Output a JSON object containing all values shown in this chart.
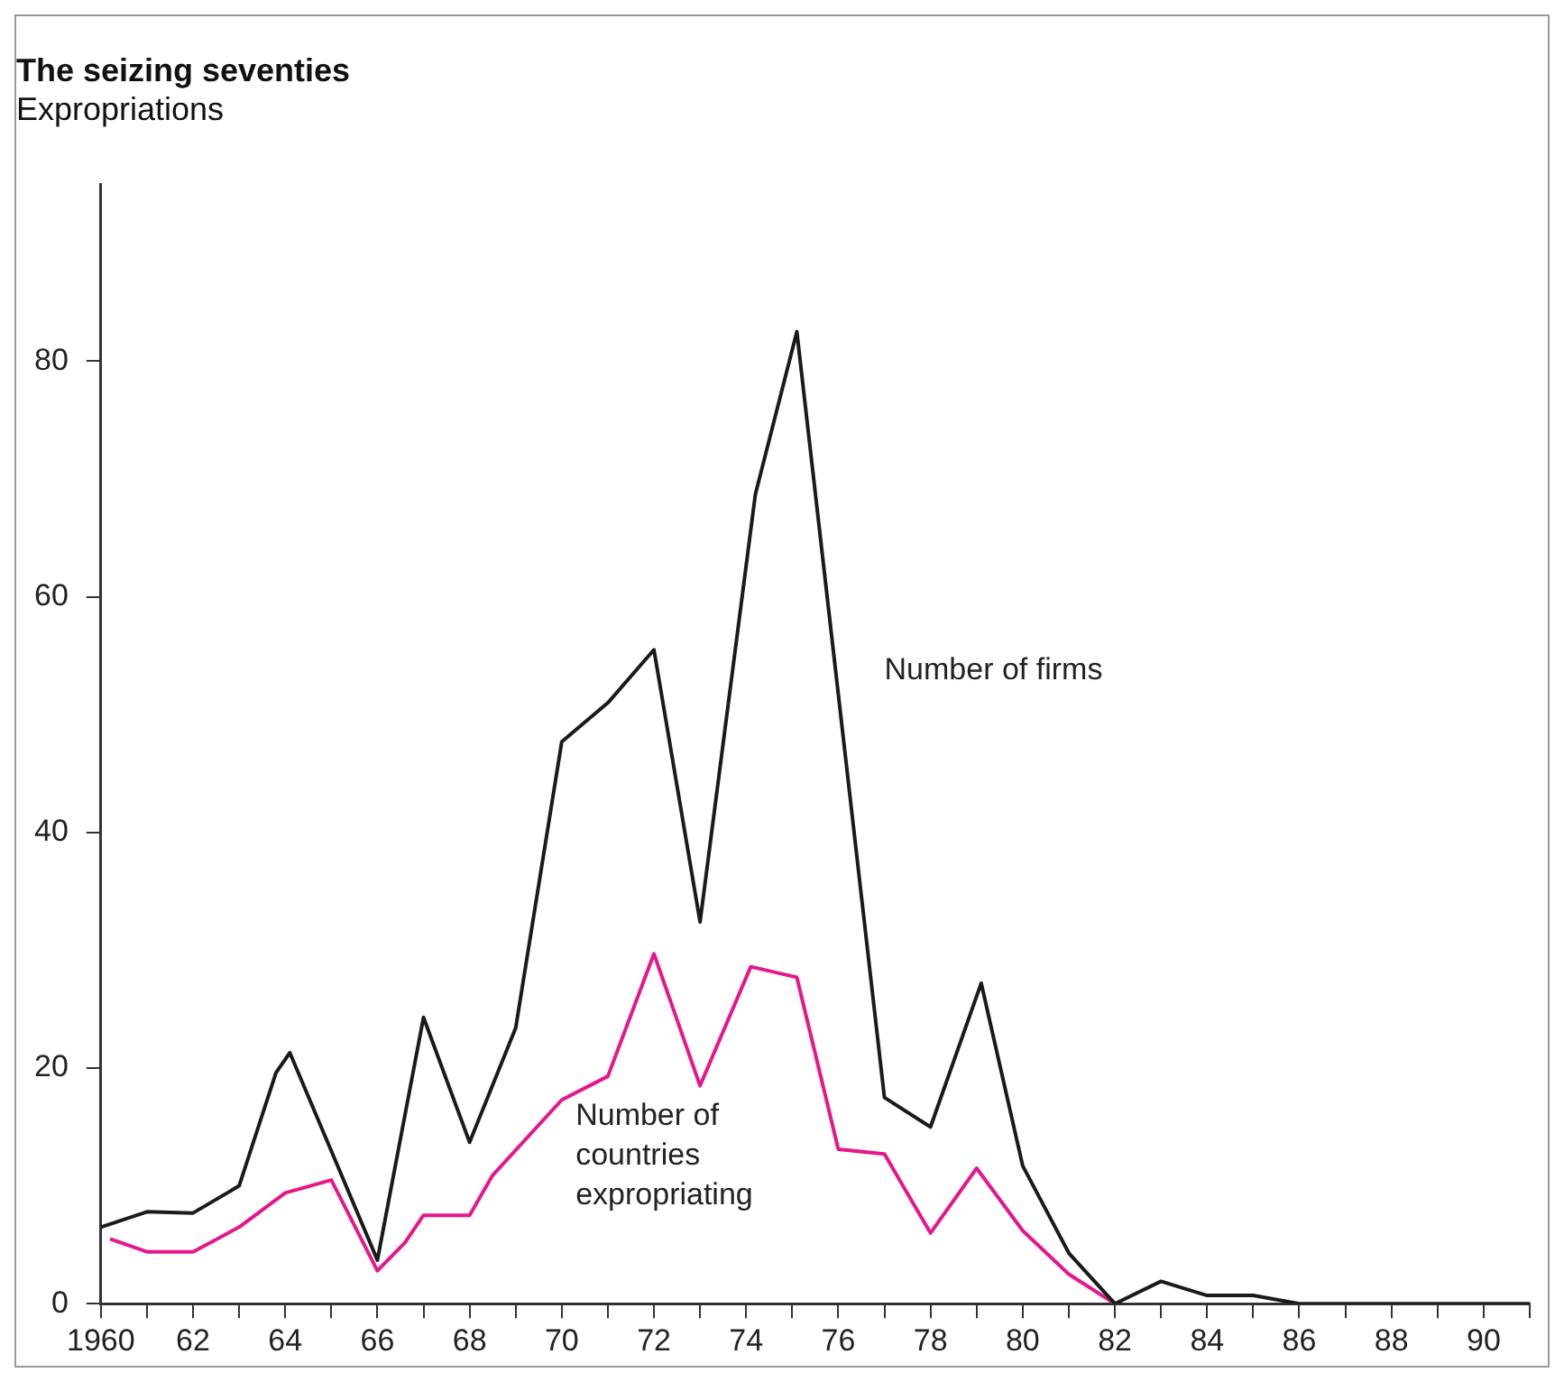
{
  "chart_data": {
    "type": "line",
    "title": "The seizing seventies",
    "subtitle": "Expropriations",
    "xlim": [
      1960,
      1991
    ],
    "ylim": [
      0,
      95
    ],
    "xticks": [
      {
        "value": 1960,
        "label": "1960"
      },
      {
        "value": 1961,
        "label": null
      },
      {
        "value": 1962,
        "label": "62"
      },
      {
        "value": 1963,
        "label": null
      },
      {
        "value": 1964,
        "label": "64"
      },
      {
        "value": 1965,
        "label": null
      },
      {
        "value": 1966,
        "label": "66"
      },
      {
        "value": 1967,
        "label": null
      },
      {
        "value": 1968,
        "label": "68"
      },
      {
        "value": 1969,
        "label": null
      },
      {
        "value": 1970,
        "label": "70"
      },
      {
        "value": 1971,
        "label": null
      },
      {
        "value": 1972,
        "label": "72"
      },
      {
        "value": 1973,
        "label": null
      },
      {
        "value": 1974,
        "label": "74"
      },
      {
        "value": 1975,
        "label": null
      },
      {
        "value": 1976,
        "label": "76"
      },
      {
        "value": 1977,
        "label": null
      },
      {
        "value": 1978,
        "label": "78"
      },
      {
        "value": 1979,
        "label": null
      },
      {
        "value": 1980,
        "label": "80"
      },
      {
        "value": 1981,
        "label": null
      },
      {
        "value": 1982,
        "label": "82"
      },
      {
        "value": 1983,
        "label": null
      },
      {
        "value": 1984,
        "label": "84"
      },
      {
        "value": 1985,
        "label": null
      },
      {
        "value": 1986,
        "label": "86"
      },
      {
        "value": 1987,
        "label": null
      },
      {
        "value": 1988,
        "label": "88"
      },
      {
        "value": 1989,
        "label": null
      },
      {
        "value": 1990,
        "label": "90"
      },
      {
        "value": 1991,
        "label": null
      }
    ],
    "yticks": [
      0,
      20,
      40,
      60,
      80
    ],
    "grid": false,
    "legend": false,
    "marker": "none",
    "line_style": "solid",
    "series": [
      {
        "name": "Number of firms",
        "color": "#1a1a1a",
        "x": [
          1960,
          1961,
          1962,
          1963,
          1963.8,
          1964.1,
          1966,
          1967,
          1968,
          1969,
          1970,
          1971,
          1972,
          1973,
          1974.2,
          1975.1,
          1977,
          1978,
          1979.1,
          1980,
          1981,
          1982,
          1983,
          1984,
          1985,
          1986,
          1991
        ],
        "values": [
          6.5,
          7.8,
          7.7,
          10,
          19.6,
          21.3,
          3.7,
          24.3,
          13.7,
          23.4,
          47.7,
          51,
          55.5,
          32.4,
          68.7,
          82.5,
          17.5,
          15,
          27.2,
          11.7,
          4.3,
          0,
          1.9,
          0.7,
          0.7,
          0,
          0
        ]
      },
      {
        "name": "Number of countries expropriating",
        "color": "#e6168c",
        "x": [
          1960.2,
          1961,
          1962,
          1963,
          1964,
          1965,
          1966,
          1966.6,
          1967,
          1968,
          1968.5,
          1970,
          1971,
          1972,
          1973,
          1974.1,
          1975.1,
          1976,
          1977,
          1978,
          1979,
          1980,
          1981,
          1982
        ],
        "values": [
          5.5,
          4.4,
          4.4,
          6.5,
          9.4,
          10.5,
          2.8,
          5.2,
          7.5,
          7.5,
          10.9,
          17.3,
          19.3,
          29.7,
          18.5,
          28.6,
          27.7,
          13.1,
          12.7,
          6,
          11.5,
          6.2,
          2.5,
          0
        ]
      }
    ]
  }
}
